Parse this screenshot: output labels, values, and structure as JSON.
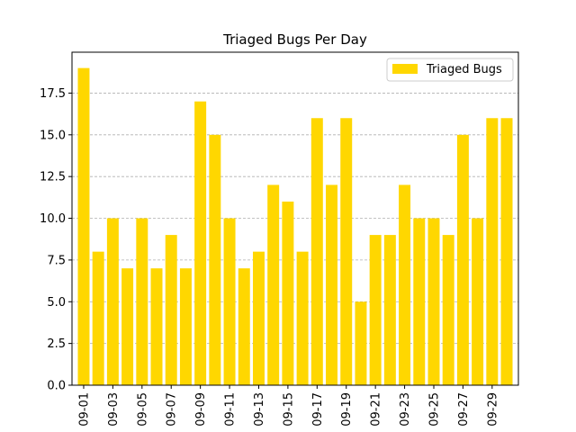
{
  "chart_data": {
    "type": "bar",
    "title": "Triaged Bugs Per Day",
    "xlabel": "",
    "ylabel": "",
    "categories": [
      "09-01",
      "09-02",
      "09-03",
      "09-04",
      "09-05",
      "09-06",
      "09-07",
      "09-08",
      "09-09",
      "09-10",
      "09-11",
      "09-12",
      "09-13",
      "09-14",
      "09-15",
      "09-16",
      "09-17",
      "09-18",
      "09-19",
      "09-20",
      "09-21",
      "09-22",
      "09-23",
      "09-24",
      "09-25",
      "09-26",
      "09-27",
      "09-28",
      "09-29",
      "09-30"
    ],
    "series": [
      {
        "name": "Triaged Bugs",
        "values": [
          19,
          8,
          10,
          7,
          10,
          7,
          9,
          7,
          17,
          15,
          10,
          7,
          8,
          12,
          11,
          8,
          16,
          12,
          16,
          5,
          9,
          9,
          12,
          10,
          10,
          9,
          15,
          10,
          16,
          16
        ]
      }
    ],
    "xtick_labels": [
      "09-01",
      "09-03",
      "09-05",
      "09-07",
      "09-09",
      "09-11",
      "09-13",
      "09-15",
      "09-17",
      "09-19",
      "09-21",
      "09-23",
      "09-25",
      "09-27",
      "09-29"
    ],
    "ytick_labels": [
      "0.0",
      "2.5",
      "5.0",
      "7.5",
      "10.0",
      "12.5",
      "15.0",
      "17.5"
    ],
    "ylim": [
      0,
      19.95
    ],
    "grid": "y-dashed",
    "legend_position": "top-right",
    "colors": {
      "bar": "#ffd700",
      "grid": "#b0b0b0",
      "axis": "#000000"
    }
  }
}
